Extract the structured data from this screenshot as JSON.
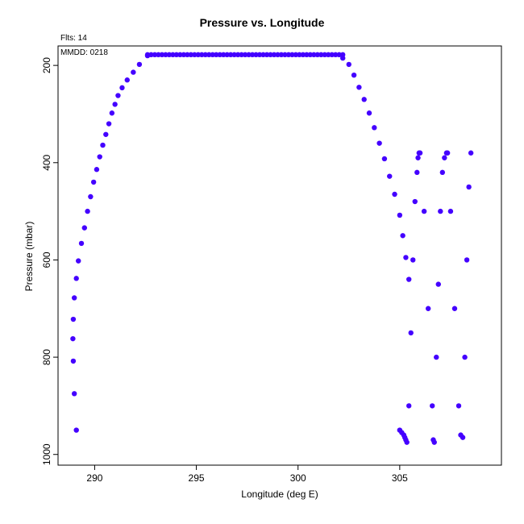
{
  "chart_data": {
    "type": "scatter",
    "title": "Pressure vs. Longitude",
    "xlabel": "Longitude (deg E)",
    "ylabel": "Pressure (mbar)",
    "annotations": {
      "flts": "Flts: 14",
      "mmdd": "MMDD: 0218"
    },
    "xlim": [
      288.2,
      310.0
    ],
    "ylim": [
      1022,
      160
    ],
    "y_inverted": true,
    "x_ticks": [
      290,
      295,
      300,
      305
    ],
    "y_ticks": [
      200,
      400,
      600,
      800,
      1000
    ],
    "grid": false,
    "legend": "none",
    "marker_color": "#4400ff",
    "series": [
      {
        "segment": "climb",
        "x": [
          289.1,
          289.0,
          288.95,
          288.93,
          288.95,
          289.0,
          289.1,
          289.2,
          289.35,
          289.5,
          289.65,
          289.8,
          289.95,
          290.1,
          290.25,
          290.4,
          290.55,
          290.7,
          290.85,
          291.0,
          291.15,
          291.35,
          291.6,
          291.9,
          292.2,
          292.6
        ],
        "y": [
          950,
          875,
          808,
          762,
          722,
          678,
          638,
          602,
          566,
          534,
          500,
          470,
          440,
          414,
          388,
          364,
          342,
          320,
          298,
          280,
          262,
          246,
          230,
          214,
          198,
          180
        ]
      },
      {
        "segment": "cruise",
        "x_start": 292.6,
        "x_end": 302.2,
        "count": 55,
        "y": 178
      },
      {
        "segment": "descent",
        "x": [
          302.2,
          302.5,
          302.75,
          303.0,
          303.25,
          303.5,
          303.75,
          304.0,
          304.25,
          304.5,
          304.75,
          305.0,
          305.15,
          305.3,
          305.45
        ],
        "y": [
          185,
          198,
          220,
          245,
          270,
          298,
          328,
          360,
          392,
          428,
          465,
          508,
          550,
          595,
          640
        ]
      },
      {
        "segment": "profile-1",
        "x": [
          305.0,
          305.1,
          305.2,
          305.25,
          305.3,
          305.35,
          305.45,
          305.55,
          305.65,
          305.75,
          305.85,
          305.9,
          305.95
        ],
        "y": [
          950,
          955,
          960,
          965,
          970,
          975,
          900,
          750,
          600,
          480,
          420,
          390,
          380
        ]
      },
      {
        "segment": "profile-2",
        "x": [
          306.0,
          306.2,
          306.4,
          306.6,
          306.65,
          306.7,
          306.8,
          306.9,
          307.0,
          307.1,
          307.2,
          307.3
        ],
        "y": [
          380,
          500,
          700,
          900,
          970,
          975,
          800,
          650,
          500,
          420,
          390,
          380
        ]
      },
      {
        "segment": "profile-3",
        "x": [
          307.35,
          307.5,
          307.7,
          307.9,
          308.0,
          308.1,
          308.2,
          308.3,
          308.4,
          308.5
        ],
        "y": [
          380,
          500,
          700,
          900,
          960,
          965,
          800,
          600,
          450,
          380
        ]
      }
    ]
  }
}
